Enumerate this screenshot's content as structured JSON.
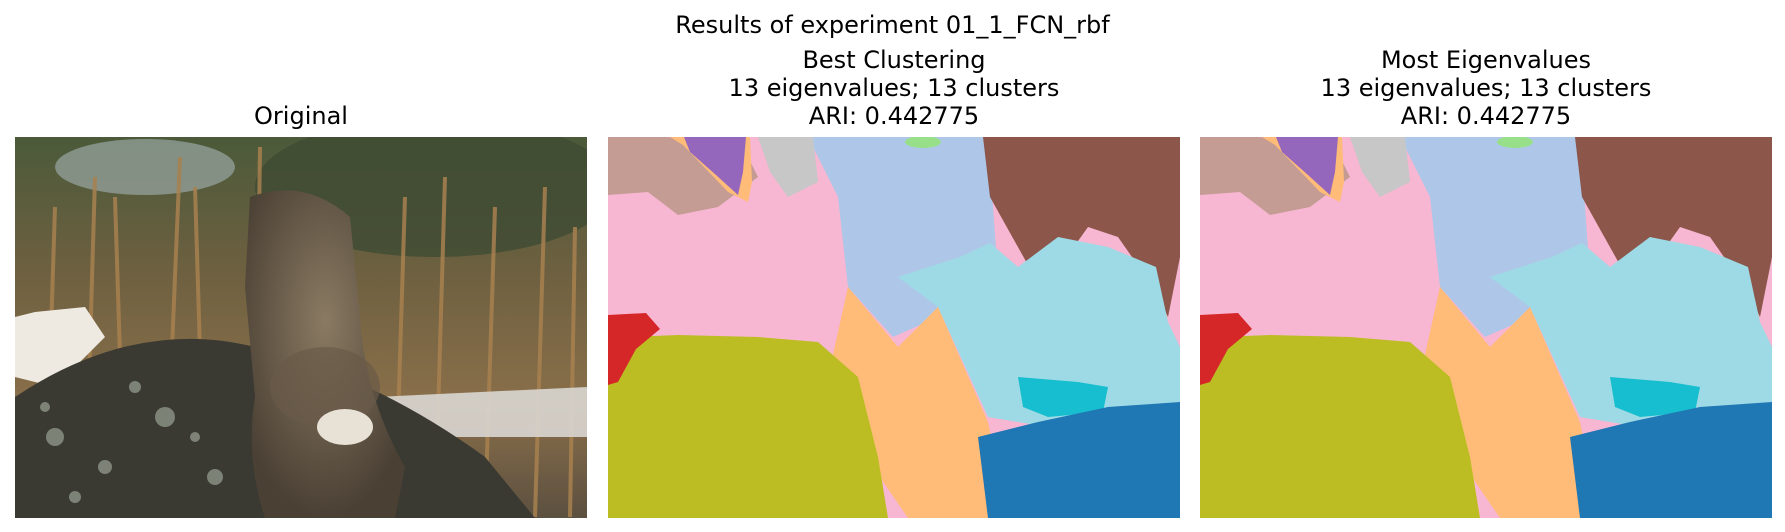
{
  "figure": {
    "suptitle": "Results of experiment 01_1_FCN_rbf",
    "panels": [
      {
        "title_lines": [
          "Original"
        ]
      },
      {
        "title_lines": [
          "Best Clustering",
          "13 eigenvalues; 13 clusters",
          "ARI: 0.442775"
        ]
      },
      {
        "title_lines": [
          "Most Eigenvalues",
          "13 eigenvalues; 13 clusters",
          "ARI: 0.442775"
        ]
      }
    ],
    "segment_colors": {
      "mauve": "#c49c94",
      "purple": "#9467bd",
      "gray": "#c7c7c7",
      "light_blue": "#aec7e8",
      "light_green": "#98df8a",
      "brown": "#8c564b",
      "pink": "#f7b6d2",
      "cyan_light": "#9edae5",
      "cyan": "#17becf",
      "orange_light": "#ffbb78",
      "red": "#d62728",
      "olive": "#bcbd22",
      "blue": "#1f77b4"
    }
  }
}
